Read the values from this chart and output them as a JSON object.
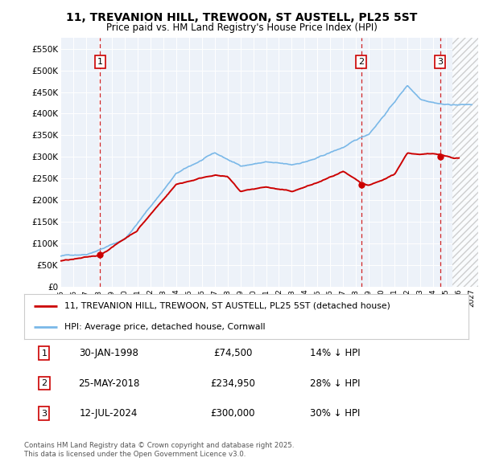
{
  "title_line1": "11, TREVANION HILL, TREWOON, ST AUSTELL, PL25 5ST",
  "title_line2": "Price paid vs. HM Land Registry's House Price Index (HPI)",
  "ylim": [
    0,
    575000
  ],
  "yticks": [
    0,
    50000,
    100000,
    150000,
    200000,
    250000,
    300000,
    350000,
    400000,
    450000,
    500000,
    550000
  ],
  "ytick_labels": [
    "£0",
    "£50K",
    "£100K",
    "£150K",
    "£200K",
    "£250K",
    "£300K",
    "£350K",
    "£400K",
    "£450K",
    "£500K",
    "£550K"
  ],
  "xlim_start": 1995.0,
  "xlim_end": 2027.5,
  "sale_dates": [
    1998.08,
    2018.4,
    2024.54
  ],
  "sale_prices": [
    74500,
    234950,
    300000
  ],
  "sale_labels": [
    "1",
    "2",
    "3"
  ],
  "vline_color": "#cc0000",
  "sale_marker_color": "#cc0000",
  "hpi_line_color": "#7ab8e8",
  "price_line_color": "#cc0000",
  "plot_bg_color": "#edf2f9",
  "legend_label_red": "11, TREVANION HILL, TREWOON, ST AUSTELL, PL25 5ST (detached house)",
  "legend_label_blue": "HPI: Average price, detached house, Cornwall",
  "annotation_1_label": "1",
  "annotation_1_date": "30-JAN-1998",
  "annotation_1_price": "£74,500",
  "annotation_1_hpi": "14% ↓ HPI",
  "annotation_2_label": "2",
  "annotation_2_date": "25-MAY-2018",
  "annotation_2_price": "£234,950",
  "annotation_2_hpi": "28% ↓ HPI",
  "annotation_3_label": "3",
  "annotation_3_date": "12-JUL-2024",
  "annotation_3_price": "£300,000",
  "annotation_3_hpi": "30% ↓ HPI",
  "footer_line1": "Contains HM Land Registry data © Crown copyright and database right 2025.",
  "footer_line2": "This data is licensed under the Open Government Licence v3.0.",
  "hatch_after": 2025.5
}
